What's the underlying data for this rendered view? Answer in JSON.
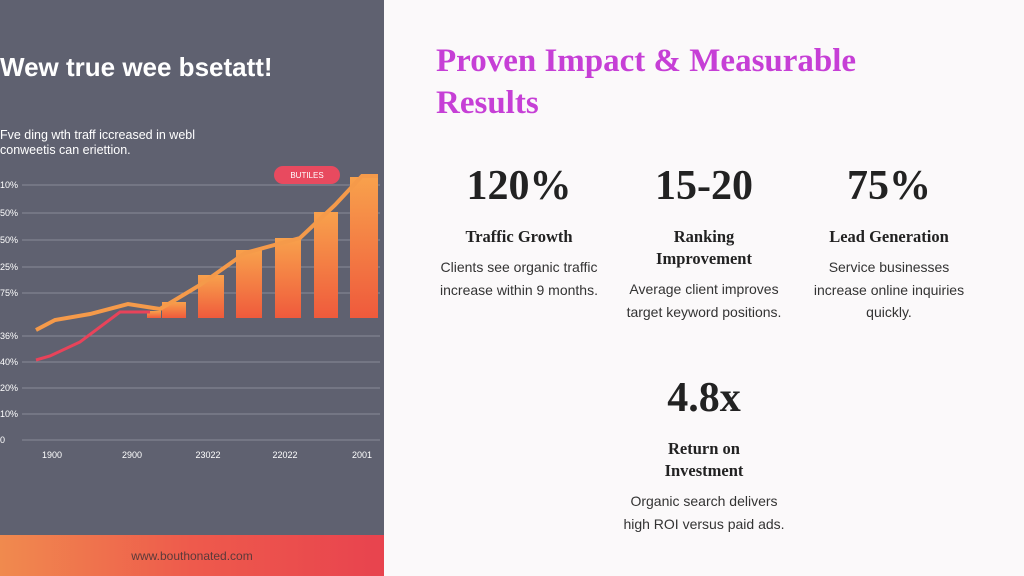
{
  "image": {
    "title": "Wew true wee bsetatt!",
    "subtitle": "Fve ding wth traff iccreased in webl conweetis can eriettion.",
    "badge": "BUTILES",
    "y_labels": [
      "10%",
      "50%",
      "50%",
      "25%",
      "75%",
      "36%",
      "40%",
      "20%",
      "10%",
      "0"
    ],
    "x_labels": [
      "1900",
      "2900",
      "23022",
      "22022",
      "2001"
    ],
    "footer": "www.bouthonated.com"
  },
  "heading": "Proven Impact & Measurable Results",
  "stats": [
    {
      "value": "120%",
      "label": "Traffic Growth",
      "description": "Clients see organic traffic increase within 9 months."
    },
    {
      "value": "15-20",
      "label": "Ranking Improvement",
      "description": "Average client improves target keyword positions."
    },
    {
      "value": "75%",
      "label": "Lead Generation",
      "description": "Service businesses increase online inquiries quickly."
    },
    {
      "value": "4.8x",
      "label": "Return on Investment",
      "description": "Organic search delivers high ROI versus paid ads."
    }
  ]
}
